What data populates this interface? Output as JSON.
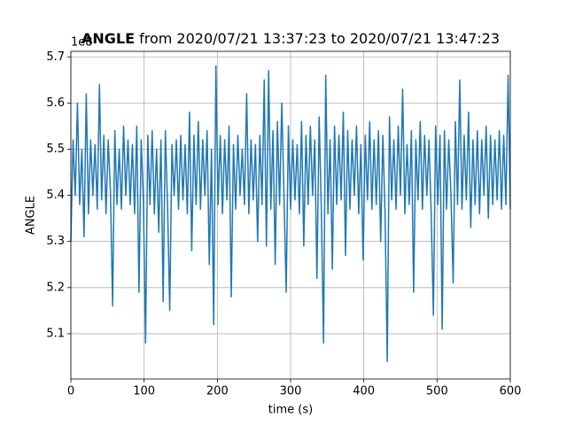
{
  "chart_data": {
    "type": "line",
    "title": {
      "name": "ANGLE",
      "text": "from 2020/07/21 13:37:23 to 2020/07/21 13:47:23"
    },
    "offset_label": "1e8",
    "xlabel": "time (s)",
    "ylabel": "ANGLE",
    "color": "#1f77b4",
    "grid": true,
    "xlim": [
      0,
      600
    ],
    "xticks": [
      0,
      100,
      200,
      300,
      400,
      500,
      600
    ],
    "ylim": [
      5.002,
      5.712
    ],
    "yticks": [
      5.1,
      5.2,
      5.3,
      5.4,
      5.5,
      5.6,
      5.7
    ],
    "x": [
      0,
      3,
      6,
      9,
      12,
      15,
      18,
      21,
      24,
      27,
      30,
      33,
      36,
      39,
      42,
      45,
      48,
      51,
      54,
      57,
      60,
      63,
      66,
      69,
      72,
      75,
      78,
      81,
      84,
      87,
      90,
      93,
      96,
      99,
      102,
      105,
      108,
      111,
      114,
      117,
      120,
      123,
      126,
      129,
      132,
      135,
      138,
      141,
      144,
      147,
      150,
      153,
      156,
      159,
      162,
      165,
      168,
      171,
      174,
      177,
      180,
      183,
      186,
      189,
      192,
      195,
      198,
      201,
      204,
      207,
      210,
      213,
      216,
      219,
      222,
      225,
      228,
      231,
      234,
      237,
      240,
      243,
      246,
      249,
      252,
      255,
      258,
      261,
      264,
      267,
      270,
      273,
      276,
      279,
      282,
      285,
      288,
      291,
      294,
      297,
      300,
      303,
      306,
      309,
      312,
      315,
      318,
      321,
      324,
      327,
      330,
      333,
      336,
      339,
      342,
      345,
      348,
      351,
      354,
      357,
      360,
      363,
      366,
      369,
      372,
      375,
      378,
      381,
      384,
      387,
      390,
      393,
      396,
      399,
      402,
      405,
      408,
      411,
      414,
      417,
      420,
      423,
      426,
      429,
      432,
      435,
      438,
      441,
      444,
      447,
      450,
      453,
      456,
      459,
      462,
      465,
      468,
      471,
      474,
      477,
      480,
      483,
      486,
      489,
      492,
      495,
      498,
      501,
      504,
      507,
      510,
      513,
      516,
      519,
      522,
      525,
      528,
      531,
      534,
      537,
      540,
      543,
      546,
      549,
      552,
      555,
      558,
      561,
      564,
      567,
      570,
      573,
      576,
      579,
      582,
      585,
      588,
      591,
      594,
      597,
      600
    ],
    "values": [
      5.3,
      5.52,
      5.4,
      5.6,
      5.38,
      5.5,
      5.31,
      5.62,
      5.36,
      5.52,
      5.4,
      5.51,
      5.37,
      5.64,
      5.39,
      5.53,
      5.36,
      5.52,
      5.41,
      5.16,
      5.54,
      5.38,
      5.5,
      5.37,
      5.55,
      5.4,
      5.52,
      5.38,
      5.51,
      5.36,
      5.55,
      5.19,
      5.52,
      5.39,
      5.08,
      5.53,
      5.38,
      5.54,
      5.36,
      5.5,
      5.32,
      5.52,
      5.17,
      5.54,
      5.38,
      5.15,
      5.51,
      5.4,
      5.52,
      5.37,
      5.53,
      5.39,
      5.51,
      5.36,
      5.58,
      5.28,
      5.53,
      5.38,
      5.56,
      5.37,
      5.52,
      5.4,
      5.54,
      5.25,
      5.5,
      5.12,
      5.68,
      5.38,
      5.53,
      5.36,
      5.52,
      5.39,
      5.55,
      5.18,
      5.51,
      5.37,
      5.53,
      5.4,
      5.5,
      5.38,
      5.62,
      5.36,
      5.52,
      5.39,
      5.51,
      5.3,
      5.53,
      5.38,
      5.65,
      5.29,
      5.67,
      5.37,
      5.54,
      5.25,
      5.56,
      5.38,
      5.6,
      5.4,
      5.19,
      5.55,
      5.37,
      5.52,
      5.39,
      5.51,
      5.36,
      5.56,
      5.29,
      5.53,
      5.38,
      5.55,
      5.4,
      5.52,
      5.22,
      5.57,
      5.37,
      5.08,
      5.66,
      5.36,
      5.52,
      5.24,
      5.55,
      5.38,
      5.53,
      5.39,
      5.58,
      5.27,
      5.54,
      5.37,
      5.52,
      5.4,
      5.55,
      5.36,
      5.51,
      5.26,
      5.53,
      5.39,
      5.56,
      5.37,
      5.52,
      5.38,
      5.54,
      5.3,
      5.53,
      5.36,
      5.04,
      5.57,
      5.39,
      5.52,
      5.37,
      5.55,
      5.4,
      5.63,
      5.36,
      5.51,
      5.38,
      5.54,
      5.19,
      5.52,
      5.39,
      5.56,
      5.37,
      5.53,
      5.4,
      5.52,
      5.36,
      5.14,
      5.55,
      5.38,
      5.53,
      5.11,
      5.54,
      5.37,
      5.52,
      5.4,
      5.21,
      5.56,
      5.38,
      5.65,
      5.37,
      5.53,
      5.39,
      5.58,
      5.33,
      5.52,
      5.38,
      5.54,
      5.36,
      5.52,
      5.4,
      5.55,
      5.35,
      5.53,
      5.38,
      5.52,
      5.39,
      5.54,
      5.37,
      5.53,
      5.38,
      5.66,
      5.37
    ]
  }
}
